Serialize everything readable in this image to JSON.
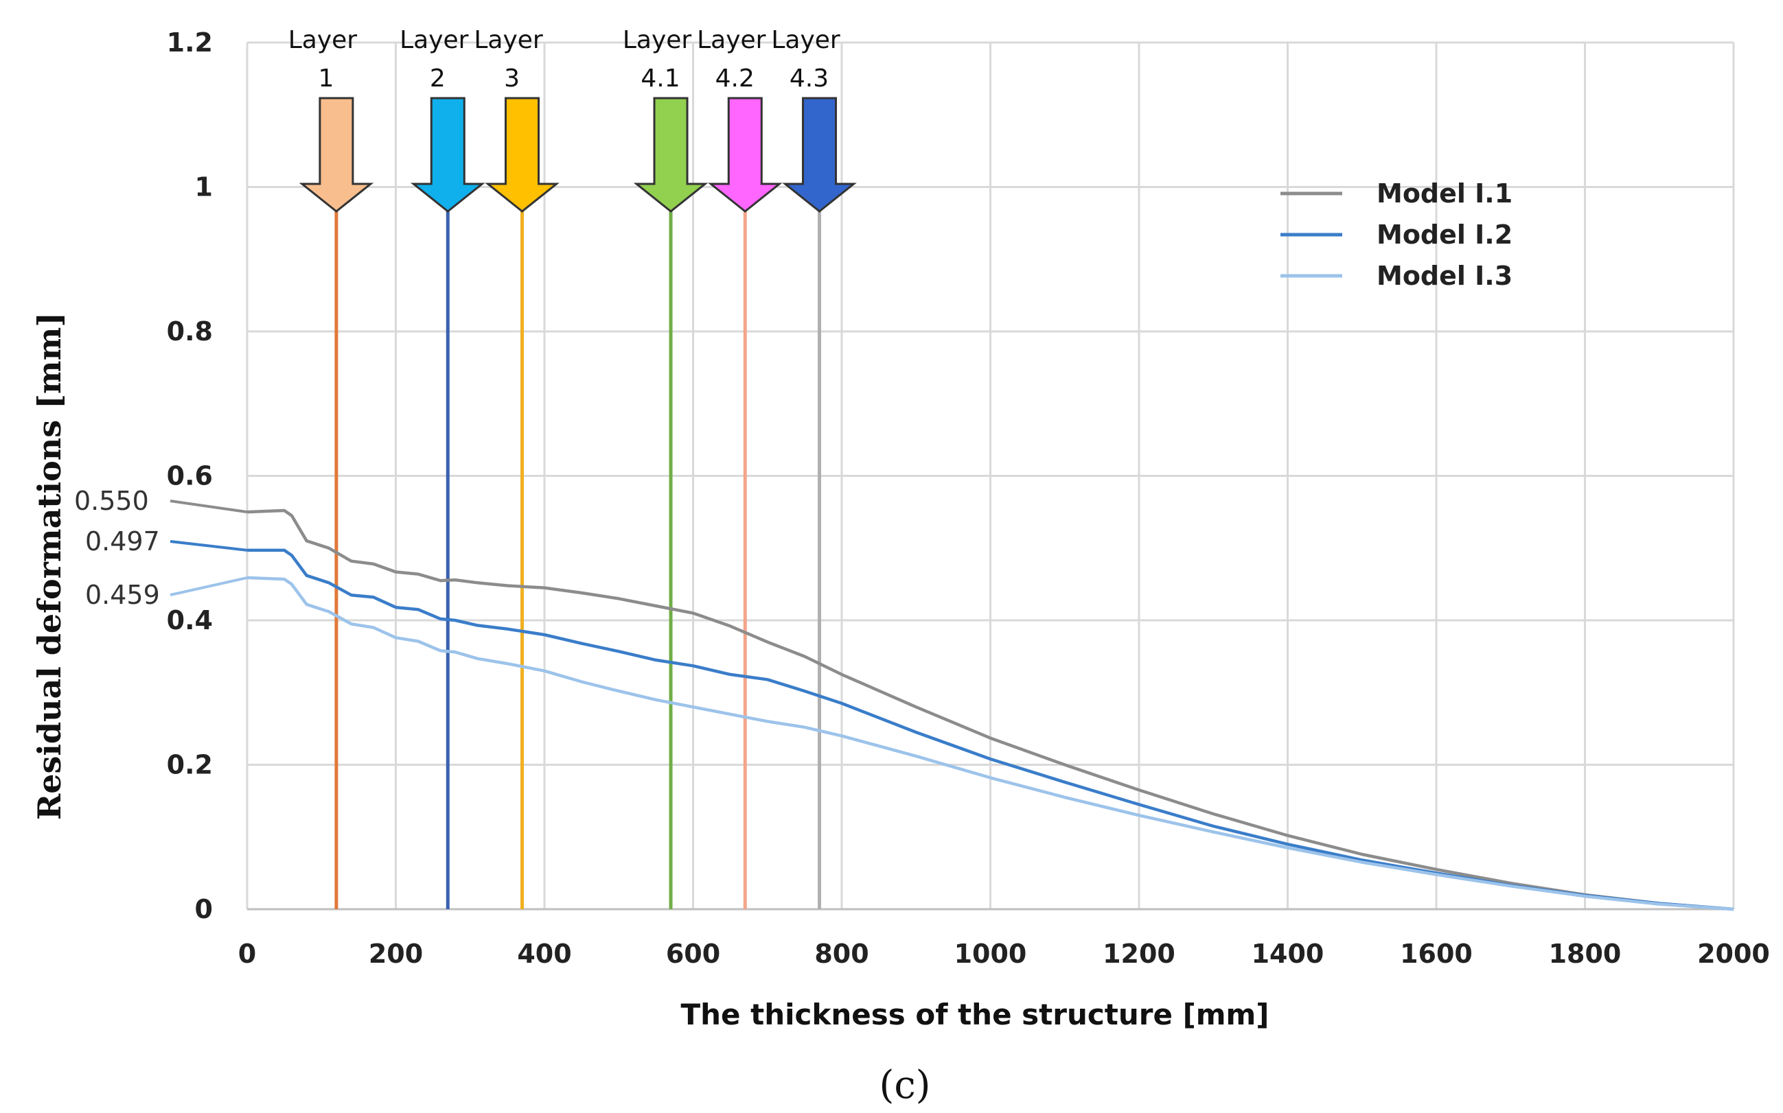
{
  "chart_data": {
    "type": "line",
    "xlabel": "The thickness of the structure  [mm]",
    "ylabel": "Residual deformations  [mm]",
    "xlim": [
      0,
      2000
    ],
    "ylim": [
      0,
      1.2
    ],
    "x_ticks": [
      "0",
      "200",
      "400",
      "600",
      "800",
      "1000",
      "1200",
      "1400",
      "1600",
      "1800",
      "2000"
    ],
    "y_ticks": [
      "0",
      "0.2",
      "0.4",
      "0.6",
      "0.8",
      "1",
      "1.2"
    ],
    "grid": true,
    "legend_position": "top-right",
    "caption": "(c)",
    "series": [
      {
        "name": "Model I.1",
        "color": "#8c8c8c",
        "start_label": "0.550",
        "x": [
          0,
          50,
          60,
          80,
          110,
          140,
          170,
          200,
          230,
          260,
          280,
          310,
          350,
          400,
          450,
          500,
          550,
          600,
          650,
          700,
          750,
          800,
          900,
          1000,
          1100,
          1200,
          1300,
          1400,
          1500,
          1600,
          1700,
          1800,
          1900,
          2000
        ],
        "y": [
          0.55,
          0.552,
          0.545,
          0.51,
          0.5,
          0.482,
          0.478,
          0.467,
          0.464,
          0.455,
          0.456,
          0.452,
          0.448,
          0.445,
          0.438,
          0.43,
          0.42,
          0.41,
          0.392,
          0.37,
          0.35,
          0.325,
          0.28,
          0.237,
          0.2,
          0.165,
          0.132,
          0.102,
          0.076,
          0.055,
          0.036,
          0.02,
          0.008,
          0.0
        ]
      },
      {
        "name": "Model I.2",
        "color": "#3a7dc9",
        "start_label": "0.497",
        "x": [
          0,
          50,
          60,
          80,
          110,
          140,
          170,
          200,
          230,
          260,
          280,
          310,
          350,
          400,
          450,
          500,
          550,
          600,
          650,
          700,
          750,
          800,
          900,
          1000,
          1100,
          1200,
          1300,
          1400,
          1500,
          1600,
          1700,
          1800,
          1900,
          2000
        ],
        "y": [
          0.497,
          0.497,
          0.49,
          0.462,
          0.452,
          0.435,
          0.432,
          0.418,
          0.415,
          0.402,
          0.4,
          0.393,
          0.388,
          0.38,
          0.368,
          0.357,
          0.345,
          0.337,
          0.325,
          0.318,
          0.302,
          0.285,
          0.245,
          0.208,
          0.176,
          0.145,
          0.115,
          0.09,
          0.068,
          0.05,
          0.033,
          0.019,
          0.008,
          0.0
        ]
      },
      {
        "name": "Model I.3",
        "color": "#9cc3ea",
        "start_label": "0.459",
        "x": [
          0,
          50,
          60,
          80,
          110,
          140,
          170,
          200,
          230,
          260,
          280,
          310,
          350,
          400,
          450,
          500,
          550,
          600,
          650,
          700,
          750,
          800,
          900,
          1000,
          1100,
          1200,
          1300,
          1400,
          1500,
          1600,
          1700,
          1800,
          1900,
          2000
        ],
        "y": [
          0.459,
          0.457,
          0.45,
          0.422,
          0.412,
          0.395,
          0.39,
          0.376,
          0.371,
          0.358,
          0.356,
          0.347,
          0.34,
          0.33,
          0.315,
          0.302,
          0.29,
          0.28,
          0.27,
          0.26,
          0.252,
          0.24,
          0.212,
          0.182,
          0.155,
          0.13,
          0.107,
          0.085,
          0.065,
          0.048,
          0.032,
          0.018,
          0.007,
          0.0
        ]
      }
    ],
    "layers": [
      {
        "name": "Layer",
        "number": "1",
        "x": 120,
        "arrow_color": "#f9be8e",
        "line_color": "#e07a3a"
      },
      {
        "name": "Layer",
        "number": "2",
        "x": 270,
        "arrow_color": "#0fb0ec",
        "line_color": "#3a62b0"
      },
      {
        "name": "Layer",
        "number": "3",
        "x": 370,
        "arrow_color": "#ffc000",
        "line_color": "#f0b020"
      },
      {
        "name": "Layer",
        "number": "4.1",
        "x": 570,
        "arrow_color": "#92d050",
        "line_color": "#70ad47"
      },
      {
        "name": "Layer",
        "number": "4.2",
        "x": 670,
        "arrow_color": "#ff66ff",
        "line_color": "#f4a58a"
      },
      {
        "name": "Layer",
        "number": "4.3",
        "x": 770,
        "arrow_color": "#3366cc",
        "line_color": "#b0b0b0"
      }
    ]
  }
}
